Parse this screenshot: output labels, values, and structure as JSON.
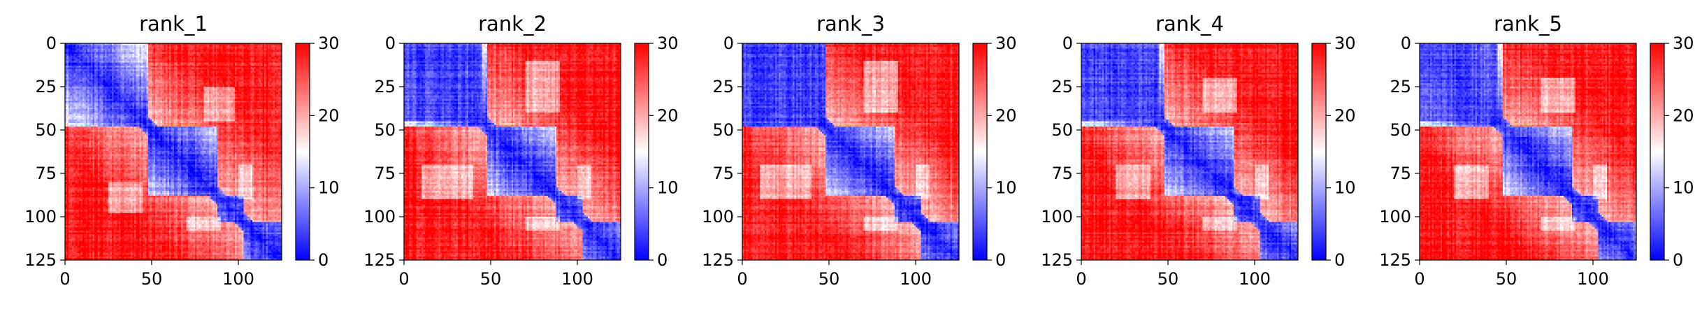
{
  "chart_data": [
    {
      "type": "heatmap",
      "title": "rank_1",
      "xlim": [
        0,
        125
      ],
      "ylim": [
        125,
        0
      ],
      "x_ticks": [
        0,
        50,
        100
      ],
      "y_ticks": [
        0,
        25,
        50,
        75,
        100,
        125
      ],
      "colorbar": {
        "min": 0,
        "max": 30,
        "ticks": [
          0,
          10,
          20,
          30
        ],
        "colors": [
          "#0000ff",
          "#ffffff",
          "#ff0000"
        ]
      },
      "domains": [
        [
          0,
          48
        ],
        [
          48,
          88
        ],
        [
          88,
          103
        ],
        [
          103,
          125
        ]
      ],
      "blue_blocks": [],
      "white_patches": [
        [
          100,
          108,
          70,
          90
        ],
        [
          25,
          45,
          80,
          98
        ]
      ]
    },
    {
      "type": "heatmap",
      "title": "rank_2",
      "xlim": [
        0,
        125
      ],
      "ylim": [
        125,
        0
      ],
      "x_ticks": [
        0,
        50,
        100
      ],
      "y_ticks": [
        0,
        25,
        50,
        75,
        100,
        125
      ],
      "colorbar": {
        "min": 0,
        "max": 30,
        "ticks": [
          0,
          10,
          20,
          30
        ],
        "colors": [
          "#0000ff",
          "#ffffff",
          "#ff0000"
        ]
      },
      "domains": [
        [
          0,
          48
        ],
        [
          48,
          88
        ],
        [
          88,
          103
        ],
        [
          103,
          125
        ]
      ],
      "blue_blocks": [
        [
          0,
          45,
          0,
          45,
          0.72
        ]
      ],
      "white_patches": [
        [
          10,
          40,
          70,
          90
        ],
        [
          100,
          108,
          70,
          90
        ]
      ]
    },
    {
      "type": "heatmap",
      "title": "rank_3",
      "xlim": [
        0,
        125
      ],
      "ylim": [
        125,
        0
      ],
      "x_ticks": [
        0,
        50,
        100
      ],
      "y_ticks": [
        0,
        25,
        50,
        75,
        100,
        125
      ],
      "colorbar": {
        "min": 0,
        "max": 30,
        "ticks": [
          0,
          10,
          20,
          30
        ],
        "colors": [
          "#0000ff",
          "#ffffff",
          "#ff0000"
        ]
      },
      "domains": [
        [
          0,
          48
        ],
        [
          48,
          88
        ],
        [
          88,
          103
        ],
        [
          103,
          125
        ]
      ],
      "blue_blocks": [
        [
          0,
          45,
          0,
          48,
          0.85
        ]
      ],
      "white_patches": [
        [
          10,
          40,
          70,
          90
        ],
        [
          100,
          108,
          70,
          90
        ]
      ]
    },
    {
      "type": "heatmap",
      "title": "rank_4",
      "xlim": [
        0,
        125
      ],
      "ylim": [
        125,
        0
      ],
      "x_ticks": [
        0,
        50,
        100
      ],
      "y_ticks": [
        0,
        25,
        50,
        75,
        100,
        125
      ],
      "colorbar": {
        "min": 0,
        "max": 30,
        "ticks": [
          0,
          10,
          20,
          30
        ],
        "colors": [
          "#0000ff",
          "#ffffff",
          "#ff0000"
        ]
      },
      "domains": [
        [
          0,
          48
        ],
        [
          48,
          88
        ],
        [
          88,
          103
        ],
        [
          103,
          125
        ]
      ],
      "blue_blocks": [
        [
          0,
          45,
          0,
          45,
          0.72
        ]
      ],
      "white_patches": [
        [
          20,
          40,
          70,
          90
        ],
        [
          100,
          108,
          70,
          90
        ]
      ]
    },
    {
      "type": "heatmap",
      "title": "rank_5",
      "xlim": [
        0,
        125
      ],
      "ylim": [
        125,
        0
      ],
      "x_ticks": [
        0,
        50,
        100
      ],
      "y_ticks": [
        0,
        25,
        50,
        75,
        100,
        125
      ],
      "colorbar": {
        "min": 0,
        "max": 30,
        "ticks": [
          0,
          10,
          20,
          30
        ],
        "colors": [
          "#0000ff",
          "#ffffff",
          "#ff0000"
        ]
      },
      "domains": [
        [
          0,
          48
        ],
        [
          48,
          88
        ],
        [
          88,
          103
        ],
        [
          103,
          125
        ]
      ],
      "blue_blocks": [
        [
          0,
          45,
          0,
          45,
          0.55
        ]
      ],
      "white_patches": [
        [
          20,
          40,
          70,
          90
        ],
        [
          100,
          108,
          70,
          90
        ]
      ]
    }
  ]
}
